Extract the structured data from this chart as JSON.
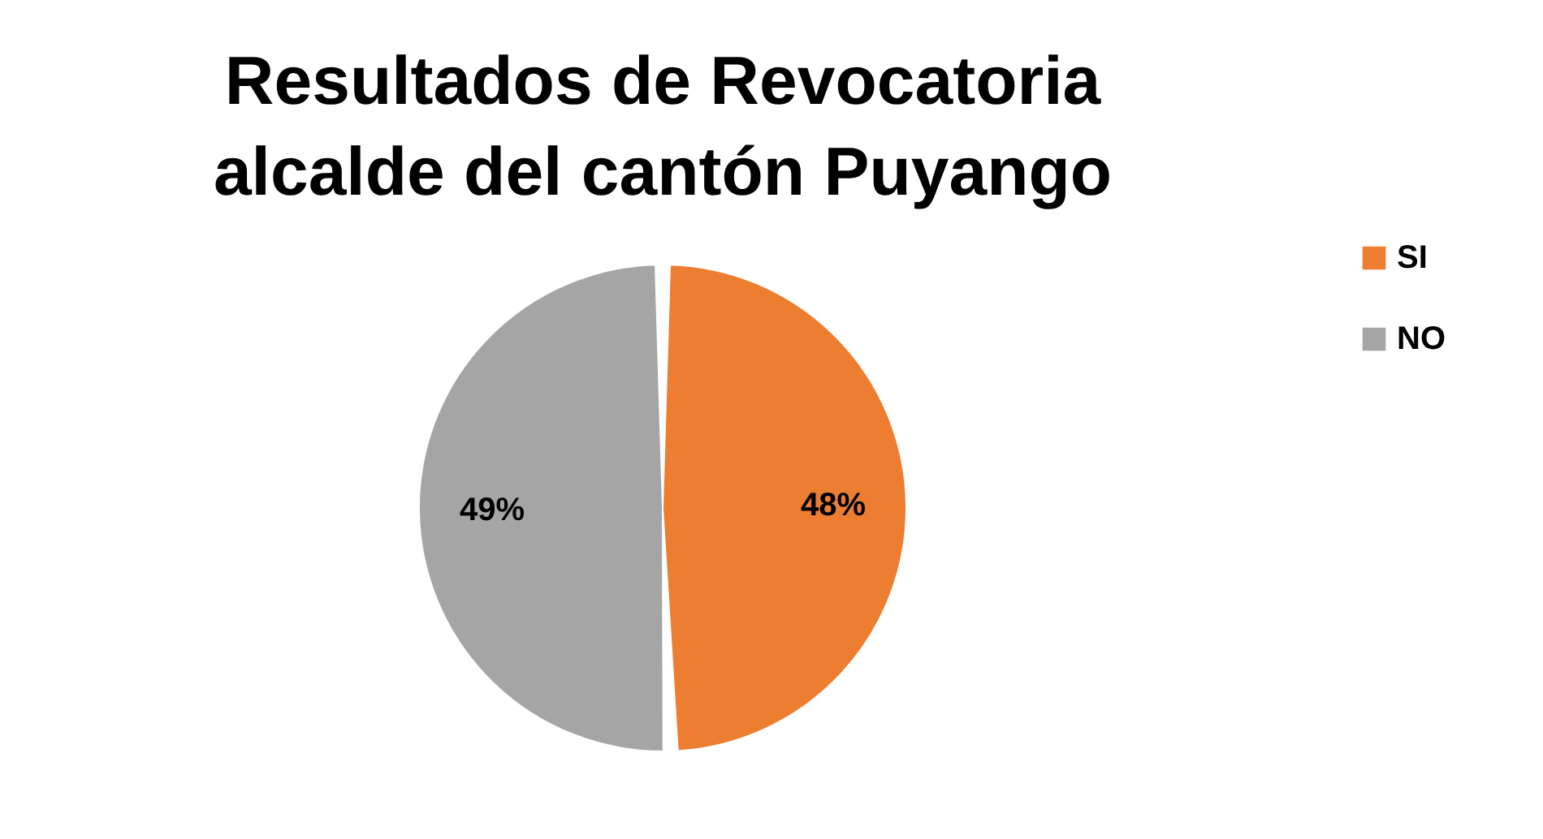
{
  "chart_data": {
    "type": "pie",
    "title": "Resultados de Revocatoria alcalde del cantón Puyango",
    "categories": [
      "SI",
      "NO"
    ],
    "values": [
      48,
      49
    ],
    "colors": [
      "#ed7d31",
      "#a5a5a5"
    ],
    "value_labels": [
      "48%",
      "49%"
    ],
    "legend": "right"
  }
}
